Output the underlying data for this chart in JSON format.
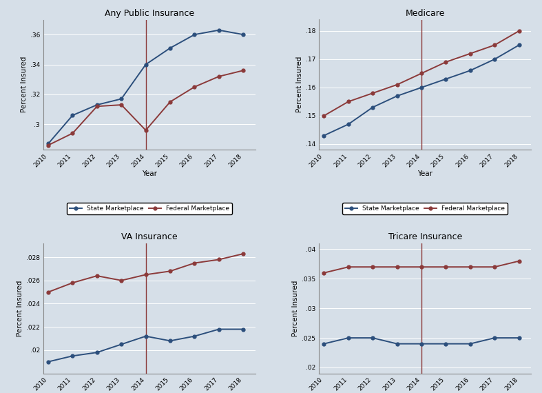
{
  "years": [
    2010,
    2011,
    2012,
    2013,
    2014,
    2015,
    2016,
    2017,
    2018
  ],
  "plots": [
    {
      "title": "Any Public Insurance",
      "ylabel": "Percent Insured",
      "state": [
        0.287,
        0.306,
        0.313,
        0.317,
        0.34,
        0.351,
        0.36,
        0.363,
        0.36
      ],
      "federal": [
        0.286,
        0.294,
        0.312,
        0.313,
        0.296,
        0.315,
        0.325,
        0.332,
        0.336
      ],
      "ylim": [
        0.283,
        0.37
      ],
      "yticks": [
        0.3,
        0.32,
        0.34,
        0.36
      ],
      "ytick_labels": [
        ".3",
        ".32",
        ".34",
        ".36"
      ]
    },
    {
      "title": "Medicare",
      "ylabel": "Percent Insured",
      "state": [
        0.143,
        0.147,
        0.153,
        0.157,
        0.16,
        0.163,
        0.166,
        0.17,
        0.175
      ],
      "federal": [
        0.15,
        0.155,
        0.158,
        0.161,
        0.165,
        0.169,
        0.172,
        0.175,
        0.18
      ],
      "ylim": [
        0.138,
        0.184
      ],
      "yticks": [
        0.14,
        0.15,
        0.16,
        0.17,
        0.18
      ],
      "ytick_labels": [
        ".14",
        ".15",
        ".16",
        ".17",
        ".18"
      ]
    },
    {
      "title": "VA Insurance",
      "ylabel": "Percent Insured",
      "state": [
        0.019,
        0.0195,
        0.0198,
        0.0205,
        0.0212,
        0.0208,
        0.0212,
        0.0218,
        0.0218
      ],
      "federal": [
        0.025,
        0.0258,
        0.0264,
        0.026,
        0.0265,
        0.0268,
        0.0275,
        0.0278,
        0.0283
      ],
      "ylim": [
        0.018,
        0.0292
      ],
      "yticks": [
        0.02,
        0.022,
        0.024,
        0.026,
        0.028
      ],
      "ytick_labels": [
        ".02",
        ".022",
        ".024",
        ".026",
        ".028"
      ]
    },
    {
      "title": "Tricare Insurance",
      "ylabel": "Percent Insured",
      "state": [
        0.024,
        0.025,
        0.025,
        0.024,
        0.024,
        0.024,
        0.024,
        0.025,
        0.025
      ],
      "federal": [
        0.036,
        0.037,
        0.037,
        0.037,
        0.037,
        0.037,
        0.037,
        0.037,
        0.038
      ],
      "ylim": [
        0.019,
        0.041
      ],
      "yticks": [
        0.02,
        0.025,
        0.03,
        0.035,
        0.04
      ],
      "ytick_labels": [
        ".02",
        ".025",
        ".03",
        ".035",
        ".04"
      ]
    }
  ],
  "vline_x": 2014,
  "state_color": "#2C4F7C",
  "federal_color": "#8B3A3A",
  "background_color": "#D6DFE8",
  "legend_labels": [
    "State Marketplace",
    "Federal Marketplace"
  ],
  "xlabel": "Year",
  "figsize": [
    7.87,
    5.7
  ],
  "dpi": 100
}
